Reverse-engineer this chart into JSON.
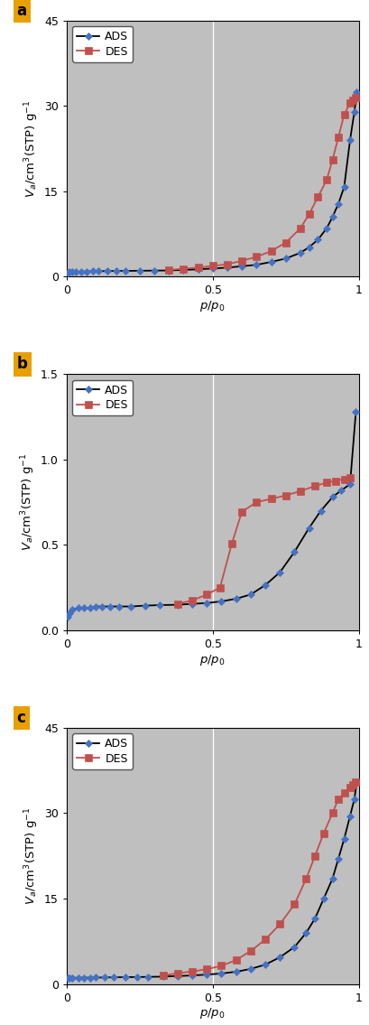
{
  "panel_a": {
    "label": "a",
    "ylim": [
      0,
      45
    ],
    "yticks": [
      0,
      15,
      30,
      45
    ],
    "xlim": [
      0,
      1.0
    ],
    "xticks": [
      0,
      0.5,
      1.0
    ],
    "xticklabels": [
      "0",
      "0.5",
      "1"
    ],
    "ylabel": "$V_a$/cm$^3$(STP) g$^{-1}$",
    "xlabel": "$p/p_0$",
    "ads_x": [
      0.005,
      0.01,
      0.02,
      0.03,
      0.05,
      0.07,
      0.09,
      0.11,
      0.14,
      0.17,
      0.2,
      0.25,
      0.3,
      0.35,
      0.4,
      0.45,
      0.5,
      0.55,
      0.6,
      0.65,
      0.7,
      0.75,
      0.8,
      0.83,
      0.86,
      0.89,
      0.91,
      0.93,
      0.95,
      0.97,
      0.985,
      0.993
    ],
    "ads_y": [
      0.75,
      0.8,
      0.85,
      0.88,
      0.9,
      0.92,
      0.95,
      0.97,
      0.99,
      1.01,
      1.03,
      1.05,
      1.08,
      1.1,
      1.2,
      1.3,
      1.45,
      1.6,
      1.85,
      2.1,
      2.6,
      3.2,
      4.2,
      5.2,
      6.5,
      8.5,
      10.5,
      12.8,
      15.8,
      24.0,
      29.0,
      32.5
    ],
    "des_x": [
      0.35,
      0.4,
      0.45,
      0.5,
      0.55,
      0.6,
      0.65,
      0.7,
      0.75,
      0.8,
      0.83,
      0.86,
      0.89,
      0.91,
      0.93,
      0.95,
      0.97,
      0.98,
      0.99
    ],
    "des_y": [
      1.2,
      1.4,
      1.6,
      1.9,
      2.2,
      2.8,
      3.5,
      4.5,
      6.0,
      8.5,
      11.0,
      14.0,
      17.0,
      20.5,
      24.5,
      28.5,
      30.5,
      31.0,
      31.5
    ]
  },
  "panel_b": {
    "label": "b",
    "ylim": [
      0,
      1.5
    ],
    "yticks": [
      0,
      0.5,
      1.0,
      1.5
    ],
    "xlim": [
      0,
      1.0
    ],
    "xticks": [
      0,
      0.5,
      1.0
    ],
    "xticklabels": [
      "0",
      "0.5",
      "1"
    ],
    "ylabel": "$V_a$/cm$^3$(STP) g$^{-1}$",
    "xlabel": "$p/p_0$",
    "ads_x": [
      0.005,
      0.01,
      0.02,
      0.04,
      0.06,
      0.08,
      0.1,
      0.12,
      0.15,
      0.18,
      0.22,
      0.27,
      0.32,
      0.38,
      0.43,
      0.48,
      0.53,
      0.58,
      0.63,
      0.68,
      0.73,
      0.78,
      0.83,
      0.87,
      0.91,
      0.94,
      0.97,
      0.99
    ],
    "ads_y": [
      0.08,
      0.1,
      0.12,
      0.13,
      0.13,
      0.13,
      0.14,
      0.14,
      0.14,
      0.14,
      0.14,
      0.145,
      0.148,
      0.15,
      0.155,
      0.16,
      0.17,
      0.185,
      0.21,
      0.265,
      0.34,
      0.46,
      0.6,
      0.7,
      0.78,
      0.82,
      0.855,
      1.28
    ],
    "des_x": [
      0.38,
      0.43,
      0.48,
      0.525,
      0.565,
      0.6,
      0.65,
      0.7,
      0.75,
      0.8,
      0.85,
      0.89,
      0.92,
      0.95,
      0.97
    ],
    "des_y": [
      0.155,
      0.175,
      0.21,
      0.25,
      0.505,
      0.695,
      0.75,
      0.77,
      0.79,
      0.815,
      0.845,
      0.865,
      0.875,
      0.885,
      0.895
    ]
  },
  "panel_c": {
    "label": "c",
    "ylim": [
      0,
      45
    ],
    "yticks": [
      0,
      15,
      30,
      45
    ],
    "xlim": [
      0,
      1.0
    ],
    "xticks": [
      0,
      0.5,
      1.0
    ],
    "xticklabels": [
      "0",
      "0.5",
      "1"
    ],
    "ylabel": "$V_a$/cm$^3$(STP) g$^{-1}$",
    "xlabel": "$p/p_0$",
    "ads_x": [
      0.005,
      0.01,
      0.02,
      0.04,
      0.06,
      0.08,
      0.1,
      0.13,
      0.16,
      0.2,
      0.24,
      0.28,
      0.33,
      0.38,
      0.43,
      0.48,
      0.53,
      0.58,
      0.63,
      0.68,
      0.73,
      0.78,
      0.82,
      0.85,
      0.88,
      0.91,
      0.93,
      0.95,
      0.97,
      0.985,
      0.993
    ],
    "ads_y": [
      1.0,
      1.05,
      1.08,
      1.1,
      1.1,
      1.12,
      1.13,
      1.15,
      1.17,
      1.2,
      1.22,
      1.25,
      1.3,
      1.4,
      1.5,
      1.65,
      1.85,
      2.15,
      2.65,
      3.4,
      4.7,
      6.5,
      9.0,
      11.5,
      15.0,
      18.5,
      22.0,
      25.5,
      29.5,
      32.5,
      35.5
    ],
    "des_x": [
      0.33,
      0.38,
      0.43,
      0.48,
      0.53,
      0.58,
      0.63,
      0.68,
      0.73,
      0.78,
      0.82,
      0.85,
      0.88,
      0.91,
      0.93,
      0.95,
      0.97,
      0.98,
      0.99
    ],
    "des_y": [
      1.5,
      1.9,
      2.2,
      2.6,
      3.2,
      4.2,
      5.8,
      7.8,
      10.5,
      14.0,
      18.5,
      22.5,
      26.5,
      30.0,
      32.5,
      33.5,
      34.5,
      35.0,
      35.5
    ]
  },
  "ads_line_color": "#000000",
  "ads_marker_color": "#4472C4",
  "des_color": "#C0504D",
  "marker_ads": "D",
  "marker_des": "s",
  "bg_color": "#BFBFBF",
  "label_bg": "#E8A000",
  "grid_color": "#FFFFFF",
  "panel_label_fontsize": 12,
  "axis_label_fontsize": 9.5,
  "tick_fontsize": 9,
  "legend_fontsize": 9,
  "marker_size_ads": 4.5,
  "marker_size_des": 5.5,
  "linewidth": 1.3
}
